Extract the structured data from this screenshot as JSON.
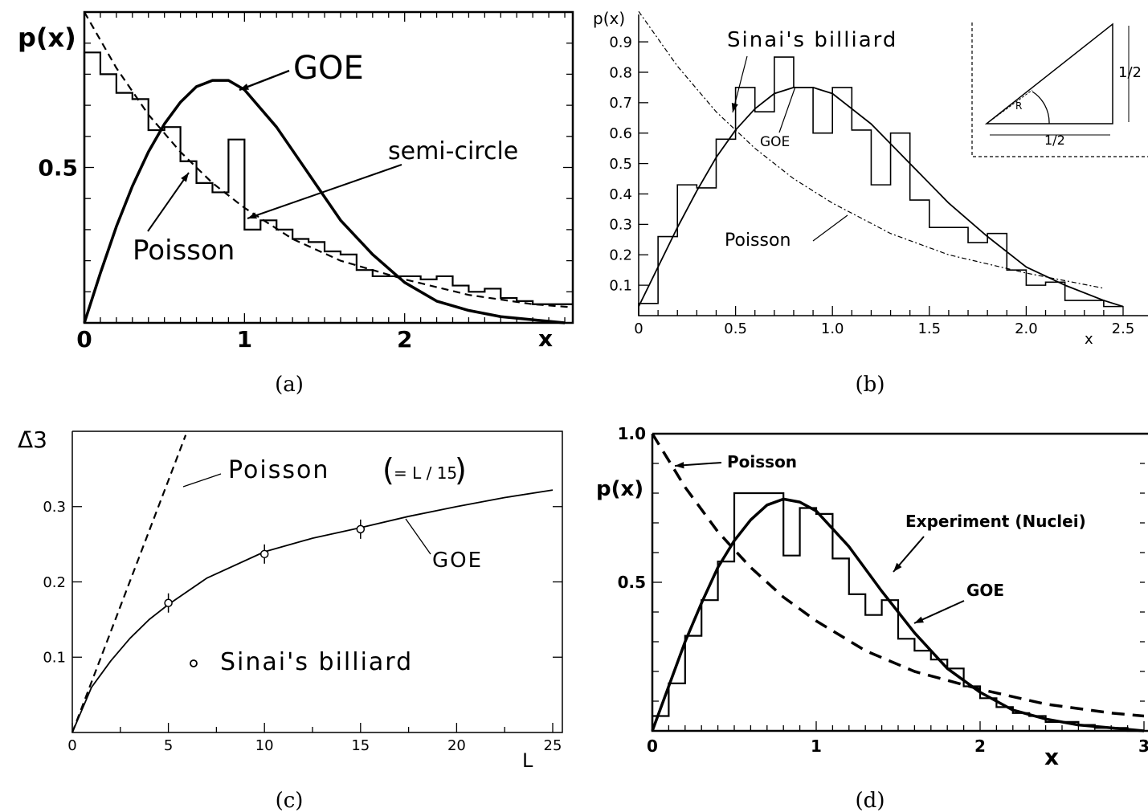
{
  "chart_data": [
    {
      "id": "a",
      "caption": "(a)",
      "type": "line",
      "ylabel": "p(x)",
      "xlabel": "x",
      "xlim": [
        0,
        3.05
      ],
      "ylim": [
        0,
        1.0
      ],
      "xticks": [
        {
          "v": 0,
          "label": "0"
        },
        {
          "v": 1,
          "label": "1"
        },
        {
          "v": 2,
          "label": "2"
        }
      ],
      "yticks": [
        {
          "v": 0.5,
          "label": "0.5"
        }
      ],
      "series": [
        {
          "name": "GOE",
          "style": "solid-thick",
          "x": [
            0,
            0.1,
            0.2,
            0.3,
            0.4,
            0.5,
            0.6,
            0.7,
            0.8,
            0.9,
            1.0,
            1.2,
            1.4,
            1.6,
            1.8,
            2.0,
            2.2,
            2.4,
            2.6,
            2.8,
            3.0
          ],
          "y": [
            0,
            0.16,
            0.31,
            0.44,
            0.55,
            0.64,
            0.71,
            0.76,
            0.78,
            0.78,
            0.75,
            0.63,
            0.48,
            0.33,
            0.22,
            0.13,
            0.07,
            0.04,
            0.02,
            0.01,
            0.0
          ]
        },
        {
          "name": "Poisson",
          "style": "dashed",
          "x": [
            0,
            0.2,
            0.4,
            0.6,
            0.8,
            1.0,
            1.3,
            1.6,
            2.0,
            2.4,
            2.8,
            3.05
          ],
          "y": [
            1.0,
            0.82,
            0.67,
            0.55,
            0.45,
            0.37,
            0.27,
            0.2,
            0.14,
            0.09,
            0.06,
            0.05
          ]
        }
      ],
      "histogram": {
        "name": "semi-circle",
        "edges": [
          0,
          0.1,
          0.2,
          0.3,
          0.4,
          0.5,
          0.6,
          0.7,
          0.8,
          0.9,
          1.0,
          1.1,
          1.2,
          1.3,
          1.4,
          1.5,
          1.6,
          1.7,
          1.8,
          1.9,
          2.0,
          2.1,
          2.2,
          2.3,
          2.4,
          2.5,
          2.6,
          2.7,
          2.8,
          2.9,
          3.0,
          3.05
        ],
        "values": [
          0.87,
          0.8,
          0.74,
          0.72,
          0.62,
          0.63,
          0.52,
          0.45,
          0.42,
          0.59,
          0.3,
          0.33,
          0.3,
          0.27,
          0.26,
          0.23,
          0.22,
          0.17,
          0.15,
          0.15,
          0.15,
          0.14,
          0.15,
          0.12,
          0.1,
          0.11,
          0.08,
          0.07,
          0.06,
          0.06,
          0.06
        ]
      },
      "annotations": [
        {
          "text": "GOE",
          "pos": "top-right of peak"
        },
        {
          "text": "semi-circle",
          "pos": "right"
        },
        {
          "text": "Poisson",
          "pos": "lower-left"
        }
      ]
    },
    {
      "id": "b",
      "caption": "(b)",
      "type": "line",
      "ylabel": "p(x)",
      "xlabel": "x",
      "xlim": [
        0,
        2.5
      ],
      "ylim": [
        0,
        0.99
      ],
      "xticks": [
        {
          "v": 0,
          "label": "0"
        },
        {
          "v": 0.5,
          "label": "0.5"
        },
        {
          "v": 1.0,
          "label": "1.0"
        },
        {
          "v": 1.5,
          "label": "1.5"
        },
        {
          "v": 2.0,
          "label": "2.0"
        },
        {
          "v": 2.5,
          "label": "2.5"
        }
      ],
      "yticks": [
        {
          "v": 0.1,
          "label": "0.1"
        },
        {
          "v": 0.2,
          "label": "0.2"
        },
        {
          "v": 0.3,
          "label": "0.3"
        },
        {
          "v": 0.4,
          "label": "0.4"
        },
        {
          "v": 0.5,
          "label": "0.5"
        },
        {
          "v": 0.6,
          "label": "0.6"
        },
        {
          "v": 0.7,
          "label": "0.7"
        },
        {
          "v": 0.8,
          "label": "0.8"
        },
        {
          "v": 0.9,
          "label": "0.9"
        }
      ],
      "series": [
        {
          "name": "GOE",
          "style": "solid",
          "x": [
            0,
            0.1,
            0.2,
            0.3,
            0.4,
            0.5,
            0.6,
            0.7,
            0.8,
            0.9,
            1.0,
            1.2,
            1.4,
            1.6,
            1.8,
            2.0,
            2.2,
            2.4,
            2.5
          ],
          "y": [
            0.03,
            0.16,
            0.29,
            0.41,
            0.52,
            0.61,
            0.68,
            0.73,
            0.75,
            0.75,
            0.73,
            0.63,
            0.5,
            0.37,
            0.26,
            0.16,
            0.1,
            0.05,
            0.03
          ]
        },
        {
          "name": "Poisson",
          "style": "dash-dot",
          "x": [
            0,
            0.2,
            0.4,
            0.6,
            0.8,
            1.0,
            1.3,
            1.6,
            2.0,
            2.4
          ],
          "y": [
            1.0,
            0.82,
            0.67,
            0.55,
            0.45,
            0.37,
            0.27,
            0.2,
            0.14,
            0.09
          ]
        }
      ],
      "histogram": {
        "name": "Sinai's billiard",
        "edges": [
          0,
          0.1,
          0.2,
          0.3,
          0.4,
          0.5,
          0.6,
          0.7,
          0.8,
          0.9,
          1.0,
          1.1,
          1.2,
          1.3,
          1.4,
          1.5,
          1.6,
          1.7,
          1.8,
          1.9,
          2.0,
          2.1,
          2.2,
          2.3,
          2.4,
          2.5
        ],
        "values": [
          0.04,
          0.26,
          0.43,
          0.42,
          0.58,
          0.75,
          0.67,
          0.85,
          0.75,
          0.6,
          0.75,
          0.61,
          0.43,
          0.6,
          0.38,
          0.29,
          0.29,
          0.24,
          0.27,
          0.15,
          0.1,
          0.11,
          0.05,
          0.05,
          0.03
        ]
      },
      "annotations": [
        {
          "text": "Sinai's billiard",
          "pos": "top"
        },
        {
          "text": "GOE",
          "pos": "center"
        },
        {
          "text": "Poisson",
          "pos": "lower-center"
        }
      ],
      "inset": {
        "labels": [
          "1/2",
          "1/2",
          "R"
        ]
      }
    },
    {
      "id": "c",
      "caption": "(c)",
      "type": "line",
      "ylabel": "Δ̄3",
      "xlabel": "L",
      "xlim": [
        0,
        25
      ],
      "ylim": [
        0,
        0.4
      ],
      "xticks": [
        {
          "v": 0,
          "label": "0"
        },
        {
          "v": 5,
          "label": "5"
        },
        {
          "v": 10,
          "label": "10"
        },
        {
          "v": 15,
          "label": "15"
        },
        {
          "v": 20,
          "label": "20"
        },
        {
          "v": 25,
          "label": "25"
        }
      ],
      "yticks": [
        {
          "v": 0.1,
          "label": "0.1"
        },
        {
          "v": 0.2,
          "label": "0.2"
        },
        {
          "v": 0.3,
          "label": "0.3"
        }
      ],
      "series": [
        {
          "name": "Poisson",
          "style": "dashed",
          "x": [
            0,
            5.9
          ],
          "y": [
            0,
            0.395
          ]
        },
        {
          "name": "GOE",
          "style": "solid",
          "x": [
            0,
            0.5,
            1,
            2,
            3,
            4,
            5,
            7,
            10,
            12.5,
            15,
            17.5,
            20,
            22.5,
            25
          ],
          "y": [
            0,
            0.03,
            0.06,
            0.095,
            0.125,
            0.15,
            0.17,
            0.205,
            0.24,
            0.258,
            0.272,
            0.287,
            0.3,
            0.312,
            0.322
          ]
        }
      ],
      "points": {
        "name": "Sinai's billiard",
        "x": [
          5,
          10,
          15
        ],
        "y": [
          0.172,
          0.237,
          0.27
        ]
      },
      "annotations": [
        {
          "text": "Poisson",
          "pos": "top"
        },
        {
          "text": "= L / 15",
          "pos": "top"
        },
        {
          "text": "GOE",
          "pos": "right"
        },
        {
          "text": "Sinai's billiard",
          "pos": "lower-center"
        }
      ]
    },
    {
      "id": "d",
      "caption": "(d)",
      "type": "line",
      "ylabel": "p(x)",
      "xlabel": "x",
      "xlim": [
        0,
        3.0
      ],
      "ylim": [
        0,
        1.0
      ],
      "xticks": [
        {
          "v": 0,
          "label": "0"
        },
        {
          "v": 1,
          "label": "1"
        },
        {
          "v": 2,
          "label": "2"
        },
        {
          "v": 3,
          "label": "3"
        }
      ],
      "yticks": [
        {
          "v": 0.5,
          "label": "0.5"
        },
        {
          "v": 1.0,
          "label": "1.0"
        }
      ],
      "series": [
        {
          "name": "GOE",
          "style": "solid-thick",
          "x": [
            0,
            0.1,
            0.2,
            0.3,
            0.4,
            0.5,
            0.6,
            0.7,
            0.8,
            0.9,
            1.0,
            1.2,
            1.4,
            1.6,
            1.8,
            2.0,
            2.2,
            2.4,
            2.6,
            2.8,
            3.0
          ],
          "y": [
            0,
            0.15,
            0.3,
            0.43,
            0.55,
            0.64,
            0.71,
            0.76,
            0.78,
            0.77,
            0.74,
            0.62,
            0.47,
            0.33,
            0.21,
            0.13,
            0.07,
            0.04,
            0.02,
            0.01,
            0.0
          ]
        },
        {
          "name": "Poisson",
          "style": "dashed-thick",
          "x": [
            0,
            0.2,
            0.4,
            0.6,
            0.8,
            1.0,
            1.3,
            1.6,
            2.0,
            2.4,
            2.8,
            3.0
          ],
          "y": [
            1.0,
            0.82,
            0.67,
            0.55,
            0.45,
            0.37,
            0.27,
            0.2,
            0.14,
            0.09,
            0.06,
            0.05
          ]
        }
      ],
      "histogram": {
        "name": "Experiment (Nuclei)",
        "edges": [
          0,
          0.1,
          0.2,
          0.3,
          0.4,
          0.5,
          0.6,
          0.7,
          0.8,
          0.9,
          1.0,
          1.1,
          1.2,
          1.3,
          1.4,
          1.5,
          1.6,
          1.7,
          1.8,
          1.9,
          2.0,
          2.1,
          2.2,
          2.3,
          2.4,
          2.5,
          2.6,
          2.7,
          2.8,
          2.9,
          3.0
        ],
        "values": [
          0.05,
          0.16,
          0.32,
          0.44,
          0.57,
          0.8,
          0.8,
          0.8,
          0.59,
          0.75,
          0.73,
          0.58,
          0.46,
          0.39,
          0.44,
          0.31,
          0.27,
          0.24,
          0.21,
          0.15,
          0.11,
          0.08,
          0.06,
          0.05,
          0.03,
          0.03,
          0.02,
          0.01,
          0.01,
          0.0
        ]
      },
      "annotations": [
        {
          "text": "Poisson",
          "pos": "top-left"
        },
        {
          "text": "Experiment (Nuclei)",
          "pos": "top-right"
        },
        {
          "text": "GOE",
          "pos": "right"
        }
      ]
    }
  ]
}
